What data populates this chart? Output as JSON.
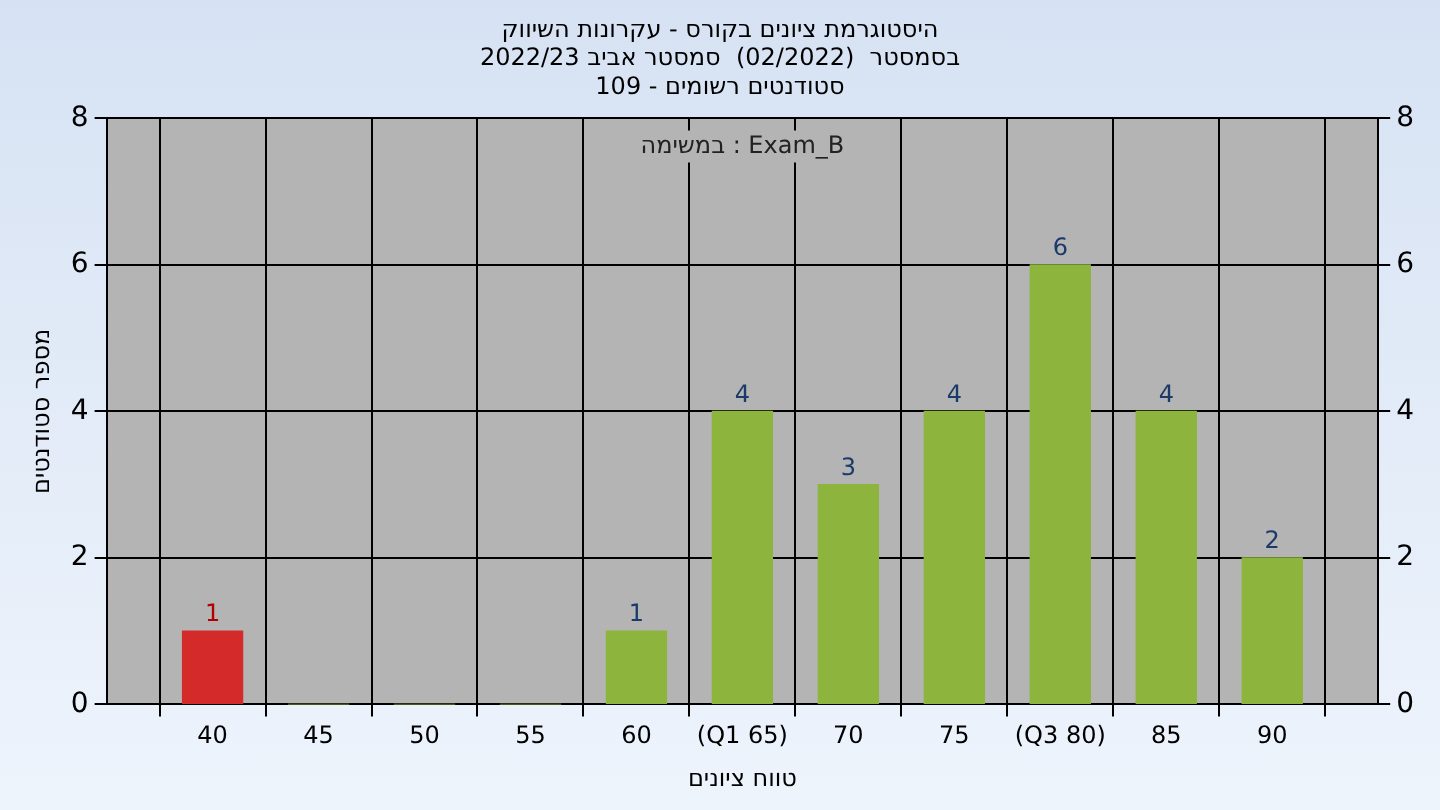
{
  "chart_data": {
    "type": "bar",
    "title": [
      "היסטוגרמת ציונים בקורס - עקרונות השיווק",
      "בסמסטר  (02/2022)  סמסטר אביב 2022/23",
      "סטודנטים רשומים - 109"
    ],
    "xlabel": "טווח ציונים",
    "ylabel": "מספר סטודנטים",
    "annotations": [
      "במשימה : Exam_B"
    ],
    "categories": [
      null,
      "40",
      "45",
      "50",
      "55",
      "60",
      "(Q1 65)",
      "70",
      "75",
      "(Q3 80)",
      "85",
      "90",
      null
    ],
    "values": [
      null,
      1,
      0,
      0,
      0,
      1,
      4,
      3,
      4,
      6,
      4,
      2,
      null
    ],
    "colors": [
      "#8db43c",
      "#d42a2a",
      "#8db43c",
      "#8db43c",
      "#8db43c",
      "#8db43c",
      "#8db43c",
      "#8db43c",
      "#8db43c",
      "#8db43c",
      "#8db43c",
      "#8db43c",
      "#8db43c"
    ],
    "value_labels": [
      null,
      "1",
      null,
      null,
      null,
      "1",
      "4",
      "3",
      "4",
      "6",
      "4",
      "2",
      null
    ],
    "ylim": [
      0,
      8
    ],
    "yticks": [
      0,
      2,
      4,
      6,
      8
    ],
    "y2lim": [
      0,
      8
    ],
    "y2ticks": [
      0,
      2,
      4,
      6,
      8
    ],
    "grid": true,
    "legend": false
  }
}
